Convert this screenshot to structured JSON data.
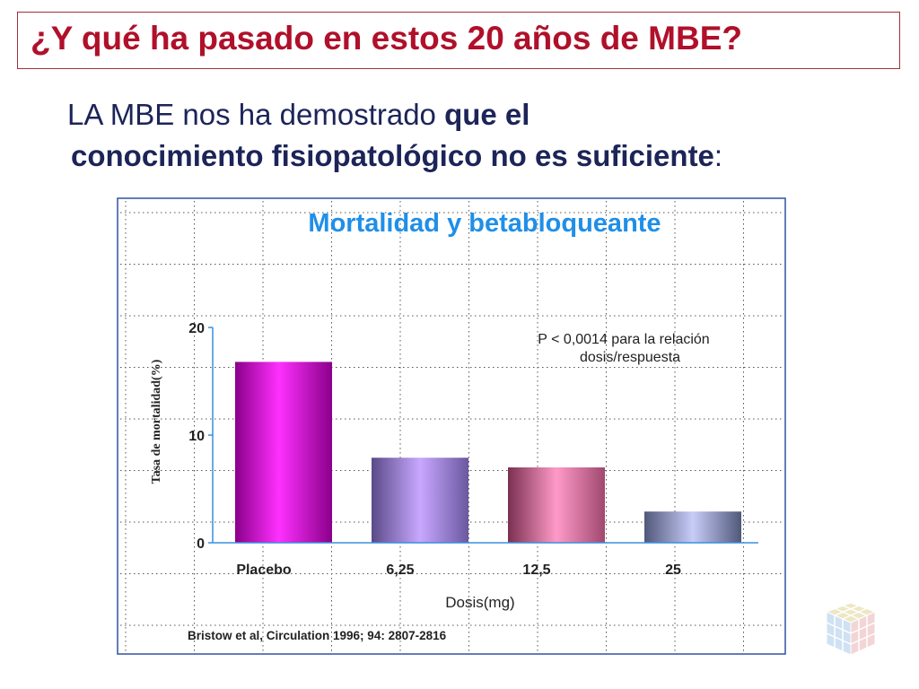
{
  "slide": {
    "title": "¿Y qué ha pasado en estos 20 años de MBE?",
    "statement": {
      "part1": "LA MBE nos ha demostrado ",
      "bold1": "que el",
      "bold2": "conocimiento fisiopatológico no es suficiente",
      "end": ":"
    }
  },
  "chart_data": {
    "type": "bar",
    "title": "Mortalidad y betabloqueante",
    "categories": [
      "Placebo",
      "6,25",
      "12,5",
      "25"
    ],
    "values": [
      16.8,
      7.9,
      7.0,
      2.9
    ],
    "xlabel": "Dosis(mg)",
    "ylabel": "Tasa de mortalidad(%)",
    "ylim": [
      0,
      20
    ],
    "yticks": [
      "0",
      "10",
      "20"
    ],
    "annotation_line1": "P < 0,0014 para la relación",
    "annotation_line2": "dosis/respuesta",
    "source": "Bristow et al, Circulation 1996; 94: 2807-2816",
    "grid": true,
    "colors": {
      "title": "#1f8fe8",
      "axis": "#3a8fe0",
      "bar_placebo": "#c000c0",
      "bar_625": "#9a78d8",
      "bar_125": "#d870a8",
      "bar_25": "#8890c0"
    }
  }
}
